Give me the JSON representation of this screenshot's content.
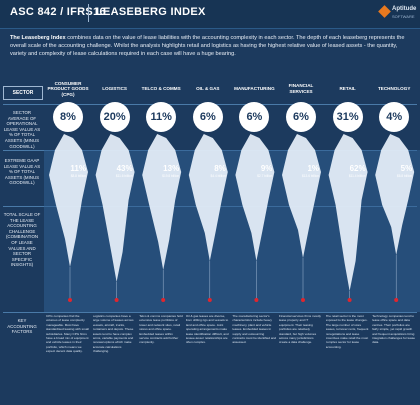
{
  "header": {
    "title_left": "ASC 842 / IFRS16",
    "title_right": "LEASEBERG INDEX",
    "logo_text": "Aptitude",
    "logo_sub": "SOFTWARE"
  },
  "intro": {
    "lead_bold": "The Leaseberg Index",
    "body": " combines data on the value of lease liabilities with the accounting complexity in each sector. The depth of each leaseberg represents the overall scale of the accounting challenge. Whilst the analysis highlights retail and logistics as having the highest relative value of leased assets - the quantity, variety and complexity of lease calculations required in each case will have a huge bearing."
  },
  "rows": {
    "sector": "SECTOR",
    "sector_avg": "SECTOR AVERAGE OF OPERATIONAL LEASE VALUE AS % OF TOTAL ASSETS (minus goodwill)",
    "extreme": "EXTREME GAAP LEASE VALUE AS % OF TOTAL ASSETS (minus goodwill)",
    "total_scale": "TOTAL SCALE OF THE LEASE ACCOUNTING CHALLENGE (combination of lease values and sector specific insights)",
    "key": "KEY ACCOUNTING FACTORS"
  },
  "sectors": [
    {
      "name": "CONSUMER PRODUCT GOODS (CPG)",
      "avg": "8%",
      "extreme": "11%",
      "extreme_note": "$8.8 billion",
      "scale": "",
      "scale_note": "",
      "depth": 0.78,
      "text": "CPG companies find the volumes of lease complexity manageable. Most have standardised leasing with small subsidiaries. Many CPG firms have a broad mix of equipment and vehicle leases in their portfolio, which means we expect decent data quality."
    },
    {
      "name": "LOGISTICS",
      "avg": "20%",
      "extreme": "43%",
      "extreme_note": "$11.6 billion",
      "scale": "",
      "scale_note": "",
      "depth": 0.88,
      "text": "Logistics companies have a large volume of leases across vessels, aircraft, trucks, containers and depots. These assets tend to have complex terms, variable payments and renewal options which make accurate calculations challenging."
    },
    {
      "name": "TELCO & COMMS",
      "avg": "11%",
      "extreme": "13%",
      "extreme_note": "$19.8 billion",
      "scale": "",
      "scale_note": "",
      "depth": 0.8,
      "text": "Telco & comms companies hold extensive lease portfolios of tower and network sites, retail stores and office space. Embedded leases within service contracts add further complexity."
    },
    {
      "name": "OIL & GAS",
      "avg": "6%",
      "extreme": "8%",
      "extreme_note": "$4.4 billion",
      "scale": "",
      "scale_note": "",
      "depth": 0.74,
      "text": "Oil & gas leases are diverse, from drilling rigs and vessels to land and office space. Joint operating arrangements make lease identification difficult, and lessee-lessor relationships are often complex."
    },
    {
      "name": "MANUFACTURING",
      "avg": "6%",
      "extreme": "9%",
      "extreme_note": "$2.7 billion",
      "scale": "",
      "scale_note": "",
      "depth": 0.74,
      "text": "The manufacturing sector's characteristics include heavy machinery, plant and vehicle leases. Embedded leases in supply and outsourcing contracts must be identified and assessed."
    },
    {
      "name": "FINANCIAL SERVICES",
      "avg": "6%",
      "extreme": "1%",
      "extreme_note": "$13.6 billion",
      "scale": "",
      "scale_note": "",
      "depth": 0.72,
      "text": "Financial services firms mostly lease property and IT equipment. Their leasing portfolios are relatively standard, but high volumes across many jurisdictions create a data challenge."
    },
    {
      "name": "RETAIL",
      "avg": "31%",
      "extreme": "62%",
      "extreme_note": "$11.4 billion",
      "scale": "",
      "scale_note": "",
      "depth": 0.94,
      "text": "The retail sector is the most exposed to the lease changes. The large number of store leases, turnover rents, frequent renegotiations and lease incentives make retail the most complex sector for lease accounting."
    },
    {
      "name": "TECHNOLOGY",
      "avg": "4%",
      "extreme": "5%",
      "extreme_note": "$6.8 billion",
      "scale": "",
      "scale_note": "",
      "depth": 0.7,
      "text": "Technology companies tend to lease office space and data centres. Their portfolios are fairly simple, yet rapid growth and frequent acquisitions bring integration challenges for lease data."
    }
  ],
  "colors": {
    "background": "#1c3a5e",
    "ice": "#e8f1fb",
    "water": "#3b6ea3",
    "dot": "#e0262e"
  }
}
